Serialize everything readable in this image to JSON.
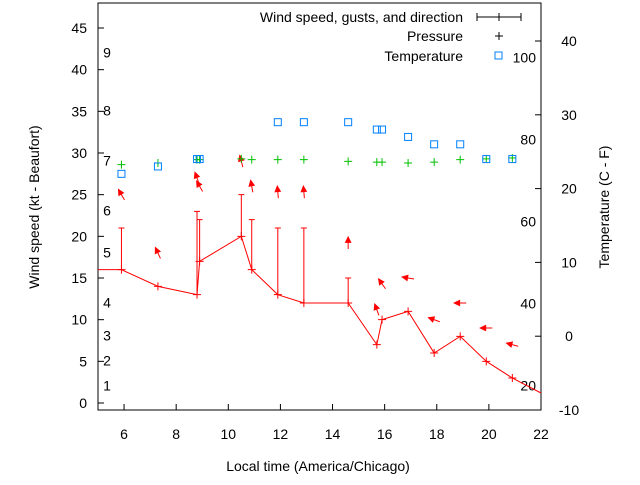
{
  "chart_data": {
    "type": "line",
    "xlabel": "Local time (America/Chicago)",
    "ylabel": "Wind speed (kt - Beaufort)",
    "y2label": "Temperature (C - F)",
    "xlim": [
      5,
      22
    ],
    "ylim": [
      0,
      48
    ],
    "y2lim": [
      -10,
      45.1
    ],
    "x_ticks": [
      6,
      8,
      10,
      12,
      14,
      16,
      18,
      20,
      22
    ],
    "y_ticks": [
      0,
      5,
      10,
      15,
      20,
      25,
      30,
      35,
      40,
      45
    ],
    "y2_ticks_c": [
      -10,
      0,
      10,
      20,
      30,
      40
    ],
    "y2_ticks_f": [
      20,
      40,
      60,
      80,
      100
    ],
    "beaufort_labels": [
      {
        "label": "1",
        "kt": 1
      },
      {
        "label": "2",
        "kt": 4
      },
      {
        "label": "3",
        "kt": 7
      },
      {
        "label": "4",
        "kt": 11
      },
      {
        "label": "5",
        "kt": 17
      },
      {
        "label": "6",
        "kt": 22
      },
      {
        "label": "7",
        "kt": 28
      },
      {
        "label": "8",
        "kt": 34
      },
      {
        "label": "9",
        "kt": 41
      }
    ],
    "legend": {
      "position": "top-right",
      "entries": [
        "Wind speed, gusts, and direction",
        "Pressure",
        "Temperature"
      ]
    },
    "wind": {
      "start": {
        "x": 5,
        "y": 16
      },
      "end": {
        "x": 22,
        "y": 1.2
      },
      "points": [
        {
          "x": 5.9,
          "speed": 16,
          "gust": 21
        },
        {
          "x": 7.3,
          "speed": 14,
          "gust": null
        },
        {
          "x": 8.8,
          "speed": 13,
          "gust": 23
        },
        {
          "x": 8.9,
          "speed": 17,
          "gust": 22
        },
        {
          "x": 10.5,
          "speed": 20,
          "gust": 25
        },
        {
          "x": 10.9,
          "speed": 16,
          "gust": 22
        },
        {
          "x": 11.9,
          "speed": 13,
          "gust": 21
        },
        {
          "x": 12.9,
          "speed": 12,
          "gust": 21
        },
        {
          "x": 14.6,
          "speed": 12,
          "gust": 15
        },
        {
          "x": 15.7,
          "speed": 7,
          "gust": null
        },
        {
          "x": 15.9,
          "speed": 10,
          "gust": null
        },
        {
          "x": 16.9,
          "speed": 11,
          "gust": null
        },
        {
          "x": 17.9,
          "speed": 6,
          "gust": null
        },
        {
          "x": 18.9,
          "speed": 8,
          "gust": null
        },
        {
          "x": 19.9,
          "speed": 5,
          "gust": null
        },
        {
          "x": 20.9,
          "speed": 3,
          "gust": null
        }
      ]
    },
    "direction_arrows": [
      {
        "x": 5.9,
        "y": 25,
        "angle": 120
      },
      {
        "x": 7.3,
        "y": 18,
        "angle": 115
      },
      {
        "x": 8.8,
        "y": 27,
        "angle": 110
      },
      {
        "x": 8.9,
        "y": 26,
        "angle": 120
      },
      {
        "x": 10.5,
        "y": 29,
        "angle": 105
      },
      {
        "x": 10.9,
        "y": 26,
        "angle": 100
      },
      {
        "x": 11.9,
        "y": 25.3,
        "angle": 95
      },
      {
        "x": 12.9,
        "y": 25.3,
        "angle": 95
      },
      {
        "x": 14.6,
        "y": 19.2,
        "angle": 90
      },
      {
        "x": 15.7,
        "y": 11.2,
        "angle": 110
      },
      {
        "x": 15.9,
        "y": 14.3,
        "angle": 125
      },
      {
        "x": 16.9,
        "y": 15,
        "angle": 170
      },
      {
        "x": 17.9,
        "y": 10,
        "angle": 160
      },
      {
        "x": 18.9,
        "y": 12,
        "angle": 180
      },
      {
        "x": 19.9,
        "y": 9,
        "angle": 180
      },
      {
        "x": 20.9,
        "y": 7,
        "angle": 165
      }
    ],
    "pressure": {
      "x": [
        5.9,
        7.3,
        8.8,
        8.9,
        10.5,
        10.9,
        11.9,
        12.9,
        14.6,
        15.7,
        15.9,
        16.9,
        17.9,
        18.9,
        19.9,
        20.9
      ],
      "y": [
        28.6,
        28.8,
        29.2,
        29.2,
        29.3,
        29.2,
        29.2,
        29.2,
        29.0,
        28.9,
        28.9,
        28.8,
        28.9,
        29.2,
        29.3,
        29.4
      ]
    },
    "temperature_c": {
      "x": [
        5.9,
        7.3,
        8.8,
        8.9,
        11.9,
        12.9,
        14.6,
        15.7,
        15.9,
        16.9,
        17.9,
        18.9,
        19.9,
        20.9
      ],
      "y": [
        22,
        23,
        24,
        24,
        29,
        29,
        29,
        28,
        28,
        27,
        26,
        26,
        24,
        24
      ]
    },
    "colors": {
      "wind": "#ff0000",
      "pressure": "#00c000",
      "temperature": "#0080ff"
    }
  }
}
